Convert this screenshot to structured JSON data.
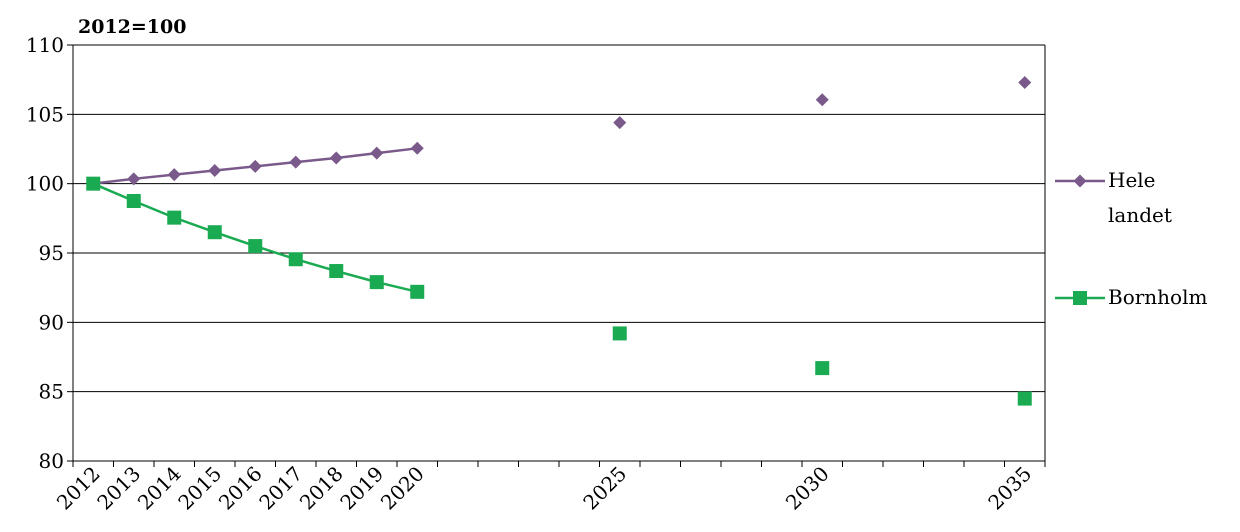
{
  "chart_data": {
    "type": "line",
    "unit_label": "2012=100",
    "categories": [
      "2012",
      "2013",
      "2014",
      "2015",
      "2016",
      "2017",
      "2018",
      "2019",
      "2020",
      "2021",
      "2022",
      "2023",
      "2024",
      "2025",
      "2026",
      "2027",
      "2028",
      "2029",
      "2030",
      "2031",
      "2032",
      "2033",
      "2034",
      "2035"
    ],
    "x_tick_labels": [
      "2012",
      "2013",
      "2014",
      "2015",
      "2016",
      "2017",
      "2018",
      "2019",
      "2020",
      "",
      "",
      "",
      "",
      "2025",
      "",
      "",
      "",
      "",
      "2030",
      "",
      "",
      "",
      "",
      "2035"
    ],
    "y_ticks": [
      80,
      85,
      90,
      95,
      100,
      105,
      110
    ],
    "ylim": [
      80,
      110
    ],
    "grid": "horizontal",
    "legend_position": "right",
    "series": [
      {
        "name": "Hele landet",
        "color": "#7a5a8a",
        "marker": "diamond",
        "values": [
          100.0,
          100.35,
          100.65,
          100.95,
          101.25,
          101.55,
          101.85,
          102.2,
          102.55,
          null,
          null,
          null,
          null,
          104.4,
          null,
          null,
          null,
          null,
          106.05,
          null,
          null,
          null,
          null,
          107.3
        ]
      },
      {
        "name": "Bornholm",
        "color": "#1aaa52",
        "marker": "square",
        "values": [
          100.0,
          98.75,
          97.55,
          96.5,
          95.5,
          94.55,
          93.7,
          92.9,
          92.2,
          null,
          null,
          null,
          null,
          89.2,
          null,
          null,
          null,
          null,
          86.7,
          null,
          null,
          null,
          null,
          84.5
        ]
      }
    ]
  }
}
